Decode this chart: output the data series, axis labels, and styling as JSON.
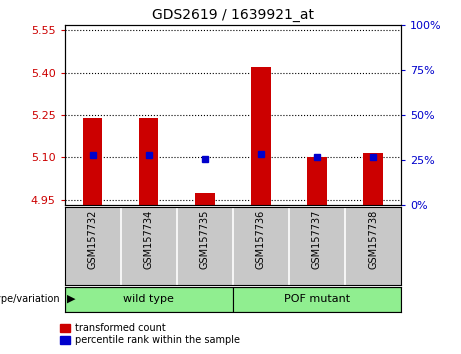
{
  "title": "GDS2619 / 1639921_at",
  "samples": [
    "GSM157732",
    "GSM157734",
    "GSM157735",
    "GSM157736",
    "GSM157737",
    "GSM157738"
  ],
  "red_values": [
    5.24,
    5.24,
    4.975,
    5.42,
    5.1,
    5.115
  ],
  "blue_values": [
    5.107,
    5.108,
    5.093,
    5.112,
    5.103,
    5.103
  ],
  "y_min": 4.93,
  "y_max": 5.57,
  "y_ticks": [
    4.95,
    5.1,
    5.25,
    5.4,
    5.55
  ],
  "y2_ticks": [
    0,
    25,
    50,
    75,
    100
  ],
  "bar_width": 0.35,
  "bar_bottom": 4.93,
  "red_color": "#CC0000",
  "blue_color": "#0000CC",
  "bg_color": "#FFFFFF",
  "panel_bg": "#C8C8C8",
  "group_color": "#90EE90",
  "left_tick_color": "#CC0000",
  "right_tick_color": "#0000CC"
}
